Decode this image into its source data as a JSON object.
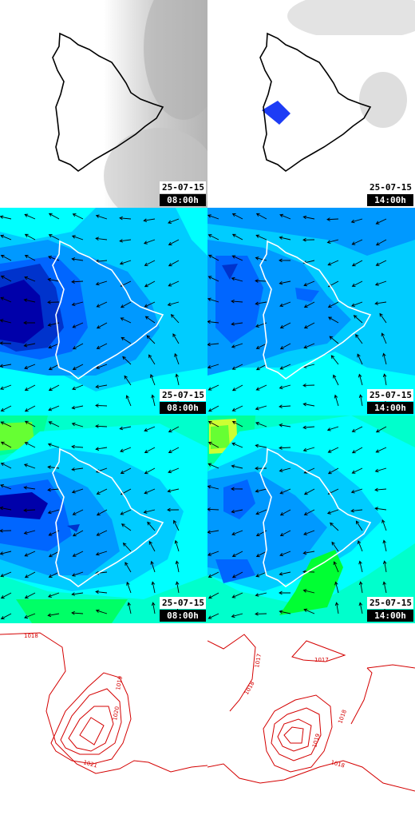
{
  "panels": [
    {
      "row": "cloud",
      "date": "25-07-15",
      "time": "08:00h"
    },
    {
      "row": "cloud",
      "date": "25-07-15",
      "time": "14:00h"
    },
    {
      "row": "wind-low",
      "date": "25-07-15",
      "time": "08:00h"
    },
    {
      "row": "wind-low",
      "date": "25-07-15",
      "time": "14:00h"
    },
    {
      "row": "wind-high",
      "date": "25-07-15",
      "time": "08:00h"
    },
    {
      "row": "wind-high",
      "date": "25-07-15",
      "time": "14:00h"
    }
  ],
  "pressure_left": {
    "labels": [
      "1018",
      "1019",
      "1020",
      "1021"
    ]
  },
  "pressure_right": {
    "labels": [
      "1017",
      "1017",
      "1018",
      "1018",
      "1019",
      "1018"
    ]
  },
  "colors": {
    "cloud_gray": "#b8b8b8",
    "rain_blue": "#1d3cf5",
    "wind_scale": [
      "#00ffff",
      "#00ccff",
      "#0099ff",
      "#0066ff",
      "#0033cc",
      "#0000aa",
      "#00ff99",
      "#66ff33",
      "#ccff00"
    ],
    "isobar": "#d40000"
  }
}
